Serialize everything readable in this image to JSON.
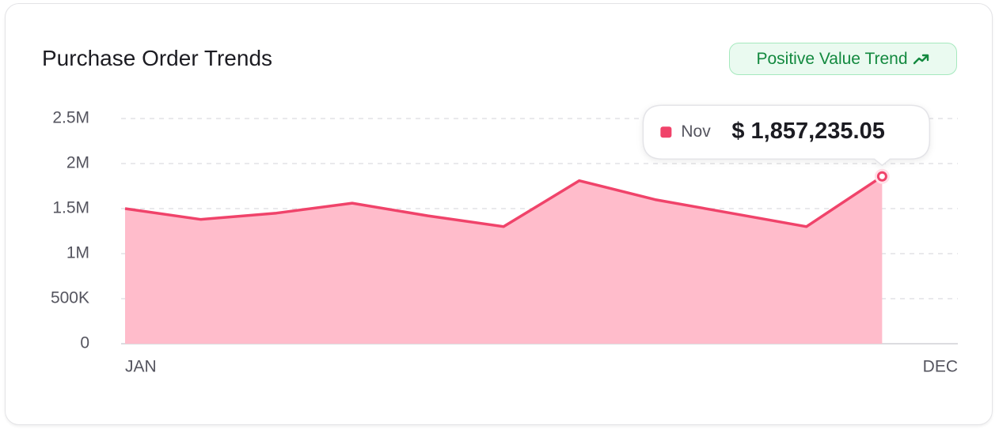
{
  "header": {
    "title": "Purchase Order Trends",
    "badge": "Positive Value Trend"
  },
  "chart_data": {
    "type": "area",
    "categories": [
      "JAN",
      null,
      null,
      null,
      null,
      null,
      null,
      null,
      null,
      null,
      null,
      "DEC"
    ],
    "values": [
      1500000,
      1380000,
      1450000,
      1560000,
      1420000,
      1300000,
      1810000,
      1600000,
      1450000,
      1300000,
      1857235.05,
      null
    ],
    "value_labels": [
      null,
      null,
      null,
      null,
      null,
      null,
      null,
      null,
      null,
      null,
      "$ 1,857,235.05",
      null
    ],
    "tooltip": {
      "category": "Nov"
    },
    "color": "#f0436a",
    "fill_color": "#ffbccb",
    "ylim": [
      0,
      2500000
    ],
    "yticks": [
      0,
      {
        "value": 500000,
        "label": "500K"
      },
      {
        "value": 1000000,
        "label": "1M"
      },
      {
        "value": 1500000,
        "label": "1.5M"
      },
      {
        "value": 2000000,
        "label": "2M"
      },
      {
        "value": 2500000,
        "label": "2.5M"
      }
    ],
    "grid": true
  }
}
